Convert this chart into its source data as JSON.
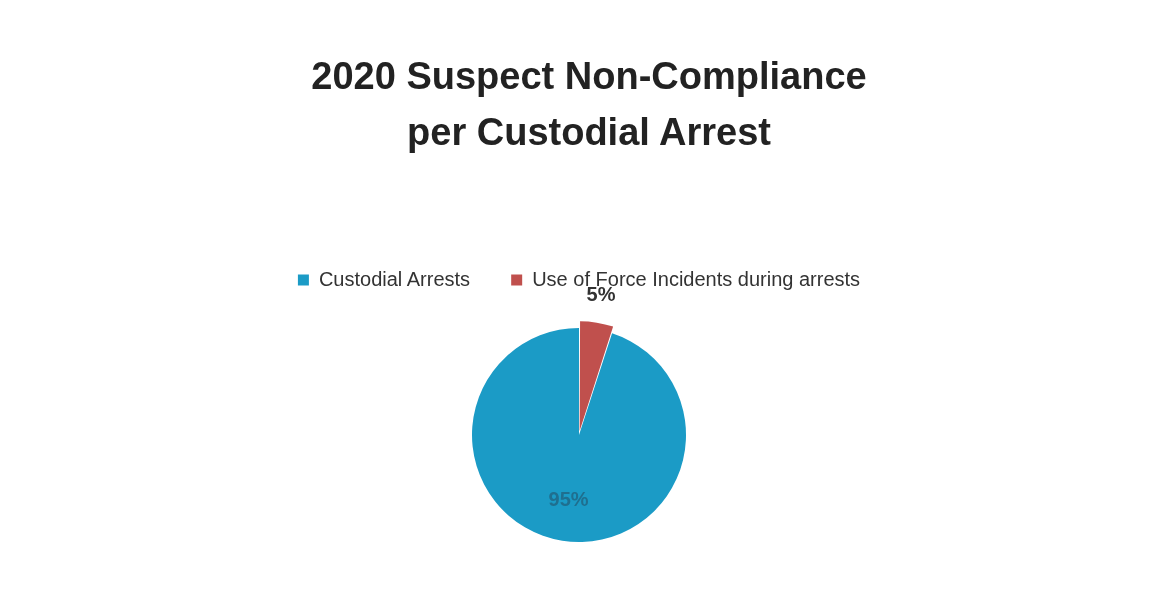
{
  "chart_data": {
    "type": "pie",
    "title": "2020 Suspect Non-Compliance per Custodial Arrest",
    "categories": [
      "Custodial Arrests",
      "Use of Force Incidents during arrests"
    ],
    "values": [
      95,
      5
    ],
    "colors": [
      "#1b9bc6",
      "#c0504d"
    ],
    "value_labels": [
      "95%",
      "5%"
    ],
    "legend": "top"
  }
}
